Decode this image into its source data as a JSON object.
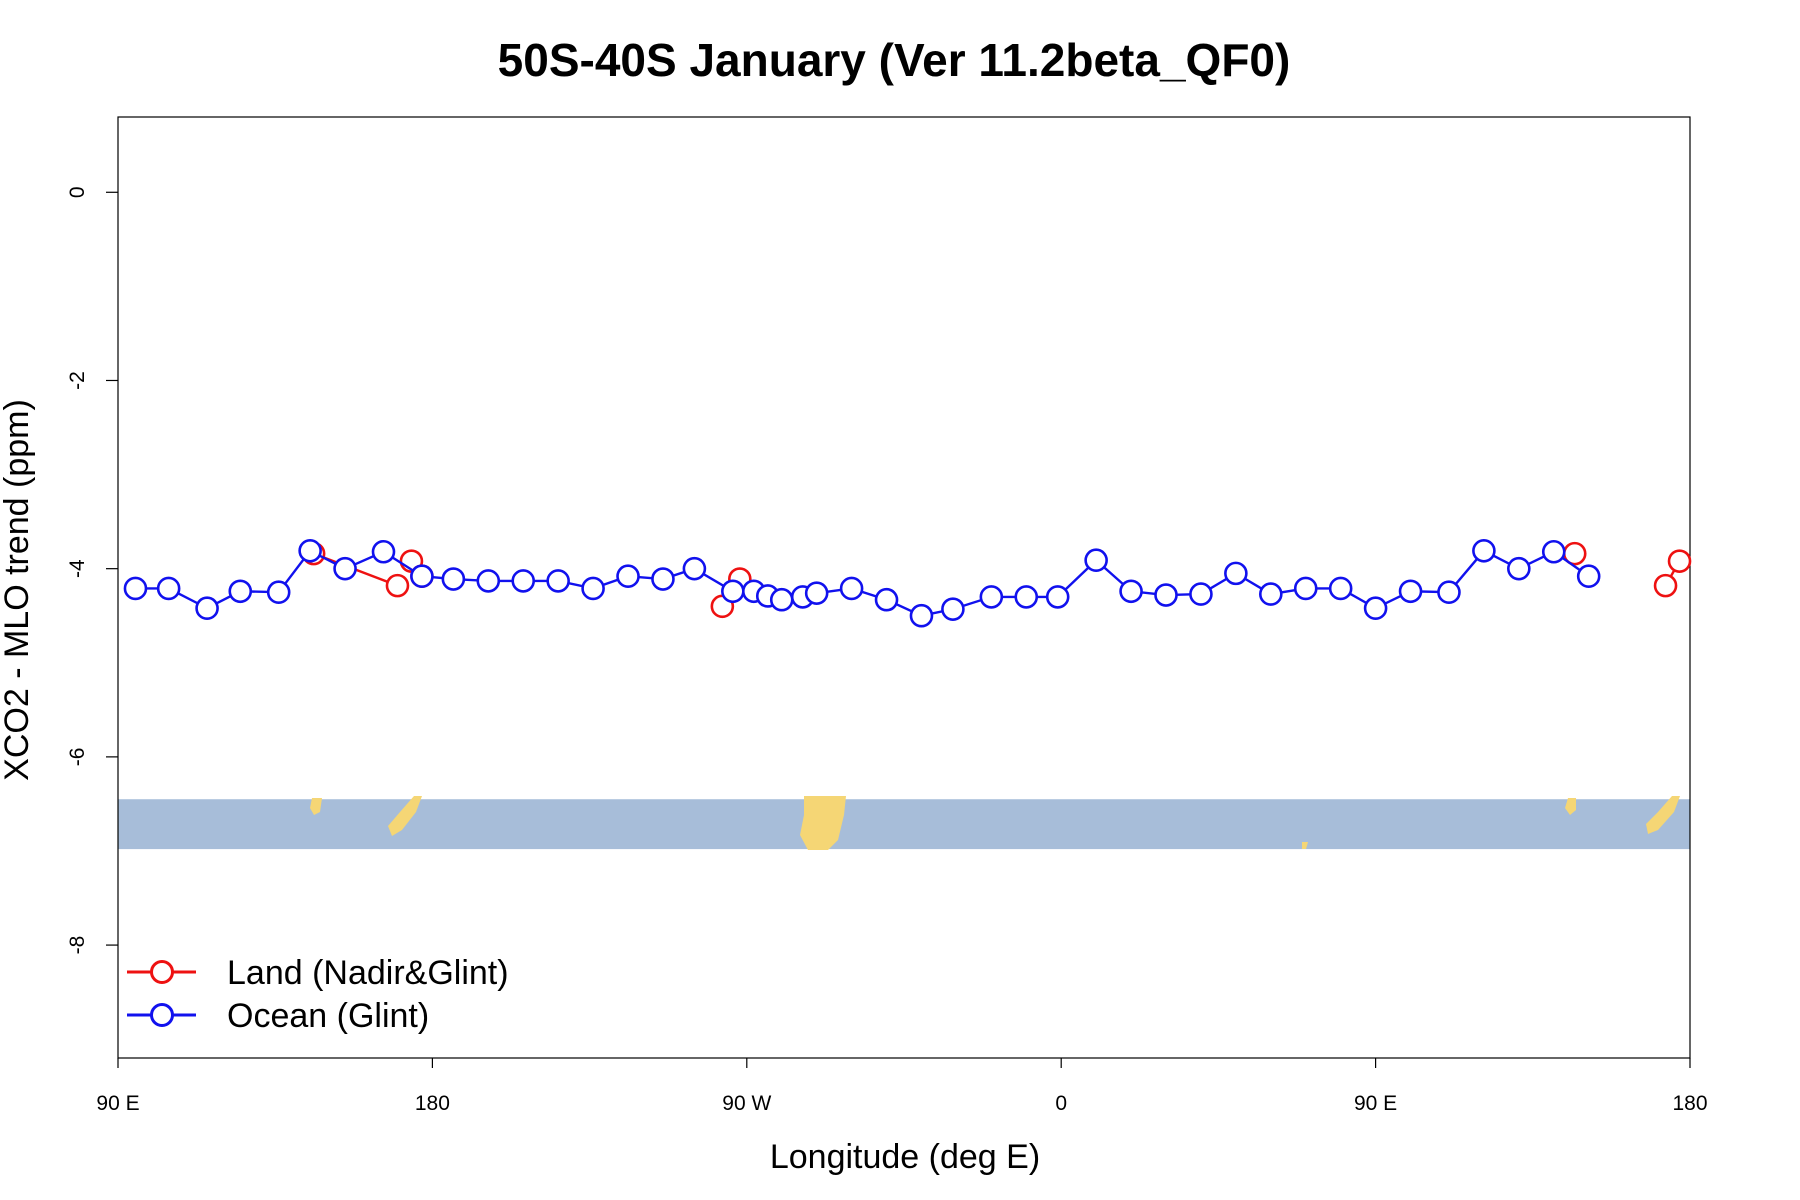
{
  "chart_data": {
    "type": "line",
    "title": "50S-40S January (Ver 11.2beta_QF0)",
    "xlabel": "Longitude (deg E)",
    "ylabel": "XCO2 - MLO trend (ppm)",
    "xlim": [
      90,
      540
    ],
    "ylim": [
      -9.2,
      0.8
    ],
    "x_ticks": [
      {
        "value": 90,
        "label": "90 E"
      },
      {
        "value": 180,
        "label": "180"
      },
      {
        "value": 270,
        "label": "90 W"
      },
      {
        "value": 360,
        "label": "0"
      },
      {
        "value": 450,
        "label": "90 E"
      },
      {
        "value": 540,
        "label": "180"
      }
    ],
    "y_ticks": [
      {
        "value": 0,
        "label": "0"
      },
      {
        "value": -2,
        "label": "-2"
      },
      {
        "value": -4,
        "label": "-4"
      },
      {
        "value": -6,
        "label": "-6"
      },
      {
        "value": -8,
        "label": "-8"
      }
    ],
    "legend_position": "bottom-left",
    "series": [
      {
        "name": "Land (Nadir&Glint)",
        "color": "#ee1111",
        "segments": [
          [
            {
              "x": 146,
              "y": -3.84
            },
            {
              "x": 170,
              "y": -4.18
            }
          ],
          [
            {
              "x": 174,
              "y": -3.92
            },
            {
              "x": 177,
              "y": -4.08
            }
          ],
          [
            {
              "x": 263,
              "y": -4.4
            },
            {
              "x": 268,
              "y": -4.11
            }
          ],
          [
            {
              "x": 507,
              "y": -3.84
            }
          ],
          [
            {
              "x": 533,
              "y": -4.18
            },
            {
              "x": 537,
              "y": -3.92
            }
          ]
        ]
      },
      {
        "name": "Ocean (Glint)",
        "color": "#1111ee",
        "points": [
          {
            "x": 95,
            "y": -4.21
          },
          {
            "x": 104.5,
            "y": -4.21
          },
          {
            "x": 115.5,
            "y": -4.42
          },
          {
            "x": 125,
            "y": -4.24
          },
          {
            "x": 136,
            "y": -4.25
          },
          {
            "x": 145,
            "y": -3.81
          },
          {
            "x": 155,
            "y": -4.0
          },
          {
            "x": 166,
            "y": -3.82
          },
          {
            "x": 177,
            "y": -4.08
          },
          {
            "x": 186,
            "y": -4.11
          },
          {
            "x": 196,
            "y": -4.13
          },
          {
            "x": 206,
            "y": -4.13
          },
          {
            "x": 216,
            "y": -4.13
          },
          {
            "x": 226,
            "y": -4.21
          },
          {
            "x": 236,
            "y": -4.08
          },
          {
            "x": 246,
            "y": -4.11
          },
          {
            "x": 255,
            "y": -4.0
          },
          {
            "x": 266,
            "y": -4.24
          },
          {
            "x": 276,
            "y": -4.29
          },
          {
            "x": 286,
            "y": -4.3
          },
          {
            "x": 272,
            "y": -4.24
          },
          {
            "x": 280,
            "y": -4.33
          },
          {
            "x": 290,
            "y": -4.26
          },
          {
            "x": 300,
            "y": -4.21
          },
          {
            "x": 310,
            "y": -4.33
          },
          {
            "x": 320,
            "y": -4.5
          },
          {
            "x": 329,
            "y": -4.43
          },
          {
            "x": 340,
            "y": -4.3
          },
          {
            "x": 350,
            "y": -4.3
          },
          {
            "x": 359,
            "y": -4.3
          },
          {
            "x": 370,
            "y": -3.91
          },
          {
            "x": 380,
            "y": -4.24
          },
          {
            "x": 390,
            "y": -4.28
          },
          {
            "x": 400,
            "y": -4.27
          },
          {
            "x": 410,
            "y": -4.05
          },
          {
            "x": 420,
            "y": -4.27
          },
          {
            "x": 430,
            "y": -4.21
          },
          {
            "x": 440,
            "y": -4.21
          },
          {
            "x": 450,
            "y": -4.42
          },
          {
            "x": 460,
            "y": -4.24
          },
          {
            "x": 471,
            "y": -4.25
          },
          {
            "x": 481,
            "y": -3.81
          },
          {
            "x": 491,
            "y": -4.0
          },
          {
            "x": 501,
            "y": -3.82
          },
          {
            "x": 511,
            "y": -4.08
          }
        ]
      }
    ],
    "map_strip": {
      "y_range": [
        -6.45,
        -6.98
      ],
      "ocean_color": "#a7bdd9",
      "land_color": "#f5d675"
    }
  }
}
